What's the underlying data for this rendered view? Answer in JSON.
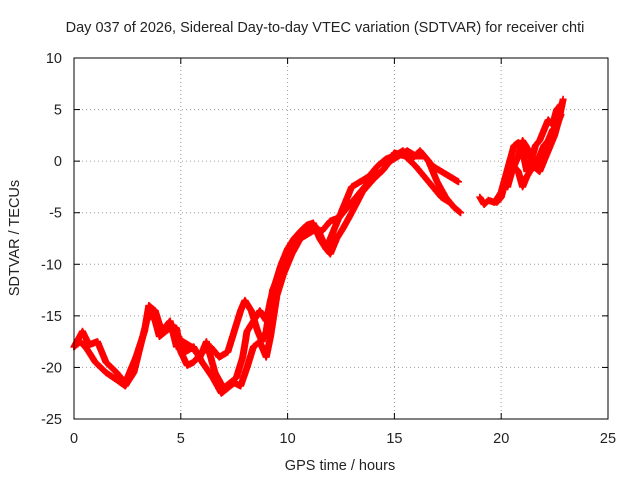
{
  "chart_data": {
    "type": "scatter",
    "title": "Day 037 of 2026, Sidereal Day-to-day VTEC variation (SDTVAR) for receiver chti",
    "xlabel": "GPS time / hours",
    "ylabel": "SDTVAR / TECUs",
    "xlim": [
      0,
      25
    ],
    "ylim": [
      -25,
      10
    ],
    "xticks": [
      0,
      5,
      10,
      15,
      20,
      25
    ],
    "yticks": [
      -25,
      -20,
      -15,
      -10,
      -5,
      0,
      5,
      10
    ],
    "grid": true,
    "marker": "plus",
    "series": [
      {
        "name": "track-a",
        "color": "#ff0000",
        "points": [
          [
            0,
            -18
          ],
          [
            0.3,
            -17.5
          ],
          [
            0.6,
            -18.2
          ],
          [
            1.0,
            -19.5
          ],
          [
            1.5,
            -20.5
          ],
          [
            2.0,
            -21.2
          ],
          [
            2.4,
            -21.8
          ],
          [
            2.8,
            -20.5
          ],
          [
            3.1,
            -18
          ],
          [
            3.4,
            -15.5
          ],
          [
            3.6,
            -14.5
          ],
          [
            3.8,
            -15.5
          ],
          [
            4.0,
            -17.0
          ],
          [
            4.3,
            -16.5
          ],
          [
            4.6,
            -16.0
          ],
          [
            4.8,
            -16.2
          ],
          [
            5.0,
            -18.5
          ],
          [
            5.3,
            -19.8
          ],
          [
            5.6,
            -19.5
          ],
          [
            6.0,
            -18.5
          ],
          [
            6.4,
            -18.0
          ],
          [
            6.8,
            -19.0
          ],
          [
            7.2,
            -18.5
          ],
          [
            7.5,
            -16.5
          ],
          [
            7.8,
            -14.5
          ],
          [
            8.0,
            -13.5
          ],
          [
            8.3,
            -14.5
          ],
          [
            8.6,
            -16.5
          ],
          [
            8.8,
            -17.5
          ],
          [
            9.0,
            -16.5
          ],
          [
            9.1,
            -15.0
          ],
          [
            9.3,
            -12.5
          ],
          [
            9.5,
            -11.5
          ],
          [
            9.8,
            -10.5
          ],
          [
            10.1,
            -9.0
          ],
          [
            10.4,
            -8.0
          ],
          [
            10.7,
            -7.0
          ],
          [
            11.0,
            -6.5
          ],
          [
            11.3,
            -6.5
          ],
          [
            11.6,
            -6.8
          ],
          [
            12.0,
            -5.8
          ],
          [
            12.4,
            -5.5
          ],
          [
            12.8,
            -4.5
          ],
          [
            13.2,
            -3.5
          ],
          [
            13.6,
            -2.5
          ],
          [
            14.0,
            -1.5
          ],
          [
            14.4,
            -1.0
          ],
          [
            14.8,
            0.0
          ],
          [
            15.2,
            0.5
          ],
          [
            15.6,
            1.0
          ],
          [
            16.0,
            0.5
          ],
          [
            16.4,
            0.5
          ],
          [
            16.8,
            -0.5
          ],
          [
            17.2,
            -1.0
          ],
          [
            17.6,
            -1.5
          ],
          [
            18.0,
            -2.0
          ]
        ]
      },
      {
        "name": "track-b",
        "color": "#ff0000",
        "points": [
          [
            0.0,
            -18.0
          ],
          [
            0.4,
            -16.5
          ],
          [
            0.7,
            -17.8
          ],
          [
            1.1,
            -17.5
          ],
          [
            1.5,
            -19.5
          ],
          [
            2.0,
            -20.5
          ],
          [
            2.4,
            -21.5
          ],
          [
            2.9,
            -19.0
          ],
          [
            3.3,
            -16.5
          ],
          [
            3.5,
            -14.0
          ],
          [
            3.8,
            -14.5
          ],
          [
            4.1,
            -16.5
          ],
          [
            4.5,
            -15.5
          ],
          [
            4.8,
            -18.0
          ],
          [
            5.1,
            -17.5
          ],
          [
            5.5,
            -18.0
          ],
          [
            5.9,
            -19.0
          ],
          [
            6.2,
            -17.5
          ],
          [
            6.6,
            -20.5
          ],
          [
            7.0,
            -22.0
          ],
          [
            7.3,
            -21.5
          ],
          [
            7.6,
            -21.0
          ],
          [
            7.9,
            -19.0
          ],
          [
            8.1,
            -16.5
          ],
          [
            8.4,
            -15.5
          ],
          [
            8.7,
            -14.5
          ],
          [
            9.0,
            -15.5
          ],
          [
            9.2,
            -13.5
          ],
          [
            9.4,
            -12.0
          ],
          [
            9.7,
            -10.0
          ],
          [
            10.0,
            -8.5
          ],
          [
            10.3,
            -7.5
          ],
          [
            10.6,
            -6.8
          ],
          [
            10.9,
            -6.2
          ],
          [
            11.2,
            -6.0
          ],
          [
            11.5,
            -7.5
          ],
          [
            11.8,
            -8.5
          ],
          [
            12.1,
            -7.0
          ],
          [
            12.4,
            -5.5
          ],
          [
            12.7,
            -4.0
          ],
          [
            13.0,
            -2.5
          ],
          [
            13.4,
            -2.0
          ],
          [
            13.8,
            -1.5
          ],
          [
            14.2,
            -0.5
          ],
          [
            14.6,
            0.2
          ],
          [
            15.0,
            0.5
          ],
          [
            15.4,
            1.0
          ],
          [
            15.8,
            0.2
          ],
          [
            16.2,
            1.0
          ],
          [
            16.6,
            0.0
          ],
          [
            17.0,
            -2.0
          ],
          [
            17.4,
            -3.5
          ],
          [
            17.8,
            -4.5
          ],
          [
            18.1,
            -5.0
          ]
        ]
      },
      {
        "name": "track-c",
        "color": "#ff0000",
        "points": [
          [
            4.9,
            -17.0
          ],
          [
            5.2,
            -18.5
          ],
          [
            5.6,
            -18.0
          ],
          [
            6.0,
            -19.5
          ],
          [
            6.5,
            -21.0
          ],
          [
            6.9,
            -22.5
          ],
          [
            7.2,
            -22.0
          ],
          [
            7.5,
            -21.5
          ],
          [
            7.8,
            -21.8
          ],
          [
            8.1,
            -20.0
          ],
          [
            8.4,
            -18.0
          ],
          [
            8.7,
            -17.5
          ],
          [
            9.0,
            -19.0
          ],
          [
            9.2,
            -17.0
          ],
          [
            9.5,
            -13.0
          ],
          [
            9.8,
            -11.0
          ],
          [
            10.2,
            -9.0
          ],
          [
            10.6,
            -7.5
          ],
          [
            11.0,
            -7.0
          ],
          [
            11.4,
            -6.5
          ],
          [
            11.8,
            -8.5
          ],
          [
            12.0,
            -9.0
          ],
          [
            12.3,
            -7.5
          ],
          [
            12.6,
            -6.5
          ],
          [
            13.0,
            -5.0
          ],
          [
            13.5,
            -3.0
          ],
          [
            14.0,
            -1.8
          ],
          [
            14.5,
            -0.8
          ],
          [
            15.0,
            0.8
          ],
          [
            15.5,
            0.5
          ],
          [
            16.0,
            -0.5
          ],
          [
            16.4,
            -1.5
          ],
          [
            16.8,
            -2.5
          ],
          [
            17.2,
            -3.5
          ],
          [
            17.6,
            -4.0
          ]
        ]
      },
      {
        "name": "track-d",
        "color": "#ff0000",
        "points": [
          [
            19.0,
            -3.5
          ],
          [
            19.2,
            -4.2
          ],
          [
            19.4,
            -3.8
          ],
          [
            19.7,
            -4.0
          ],
          [
            20.0,
            -3.0
          ],
          [
            20.2,
            -1.5
          ],
          [
            20.4,
            0.0
          ],
          [
            20.6,
            1.5
          ],
          [
            20.8,
            1.8
          ],
          [
            21.0,
            1.0
          ],
          [
            21.2,
            -1.0
          ],
          [
            21.4,
            0.0
          ],
          [
            21.6,
            1.5
          ],
          [
            21.8,
            2.0
          ],
          [
            22.0,
            3.0
          ],
          [
            22.2,
            4.0
          ],
          [
            22.4,
            3.5
          ],
          [
            22.6,
            5.0
          ],
          [
            22.8,
            5.5
          ]
        ]
      },
      {
        "name": "track-e",
        "color": "#ff0000",
        "points": [
          [
            19.8,
            -4.0
          ],
          [
            20.0,
            -3.5
          ],
          [
            20.2,
            -2.0
          ],
          [
            20.4,
            -1.0
          ],
          [
            20.6,
            -0.5
          ],
          [
            20.8,
            -1.0
          ],
          [
            21.0,
            -2.5
          ],
          [
            21.2,
            -1.5
          ],
          [
            21.4,
            -0.8
          ],
          [
            21.6,
            -0.5
          ],
          [
            21.8,
            0.5
          ],
          [
            22.0,
            1.5
          ],
          [
            22.2,
            2.0
          ],
          [
            22.4,
            3.0
          ],
          [
            22.6,
            3.5
          ],
          [
            22.8,
            4.5
          ]
        ]
      },
      {
        "name": "track-f",
        "color": "#ff0000",
        "points": [
          [
            20.3,
            -2.5
          ],
          [
            20.5,
            -1.0
          ],
          [
            20.8,
            0.5
          ],
          [
            21.0,
            2.0
          ],
          [
            21.3,
            1.0
          ],
          [
            21.5,
            -0.5
          ],
          [
            21.8,
            -1.0
          ],
          [
            22.0,
            0.0
          ],
          [
            22.3,
            1.5
          ],
          [
            22.5,
            2.5
          ],
          [
            22.7,
            4.0
          ],
          [
            22.9,
            6.0
          ]
        ]
      }
    ]
  }
}
